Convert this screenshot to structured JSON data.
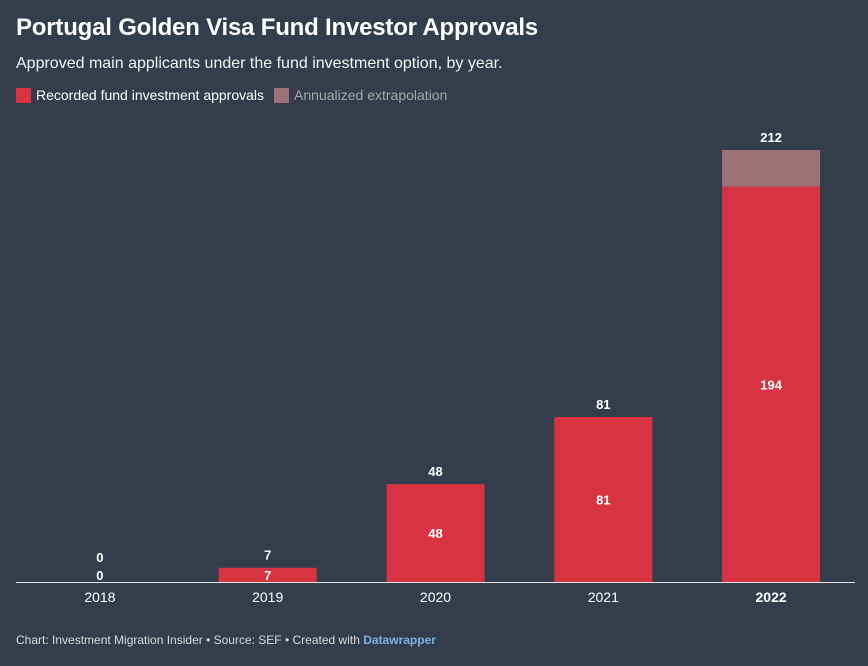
{
  "header": {
    "title": "Portugal Golden Visa Fund Investor Approvals",
    "subtitle": "Approved main applicants under the fund investment option, by year."
  },
  "legend": [
    {
      "label": "Recorded fund investment approvals",
      "color": "#d83341"
    },
    {
      "label": "Annualized extrapolation",
      "color": "#9c7278"
    }
  ],
  "chart_data": {
    "type": "bar",
    "stacked": true,
    "categories": [
      "2018",
      "2019",
      "2020",
      "2021",
      "2022"
    ],
    "series": [
      {
        "name": "Recorded fund investment approvals",
        "values": [
          0,
          7,
          48,
          81,
          194
        ],
        "color": "#d83341"
      },
      {
        "name": "Annualized extrapolation",
        "values": [
          0,
          0,
          0,
          0,
          18
        ],
        "color": "#9c7278"
      }
    ],
    "totals": [
      0,
      7,
      48,
      81,
      212
    ],
    "highlight_category": "2022",
    "ylim": [
      0,
      212
    ],
    "grid": false
  },
  "footer": {
    "prefix": "Chart: Investment Migration Insider • Source: SEF • Created with ",
    "link": "Datawrapper"
  }
}
